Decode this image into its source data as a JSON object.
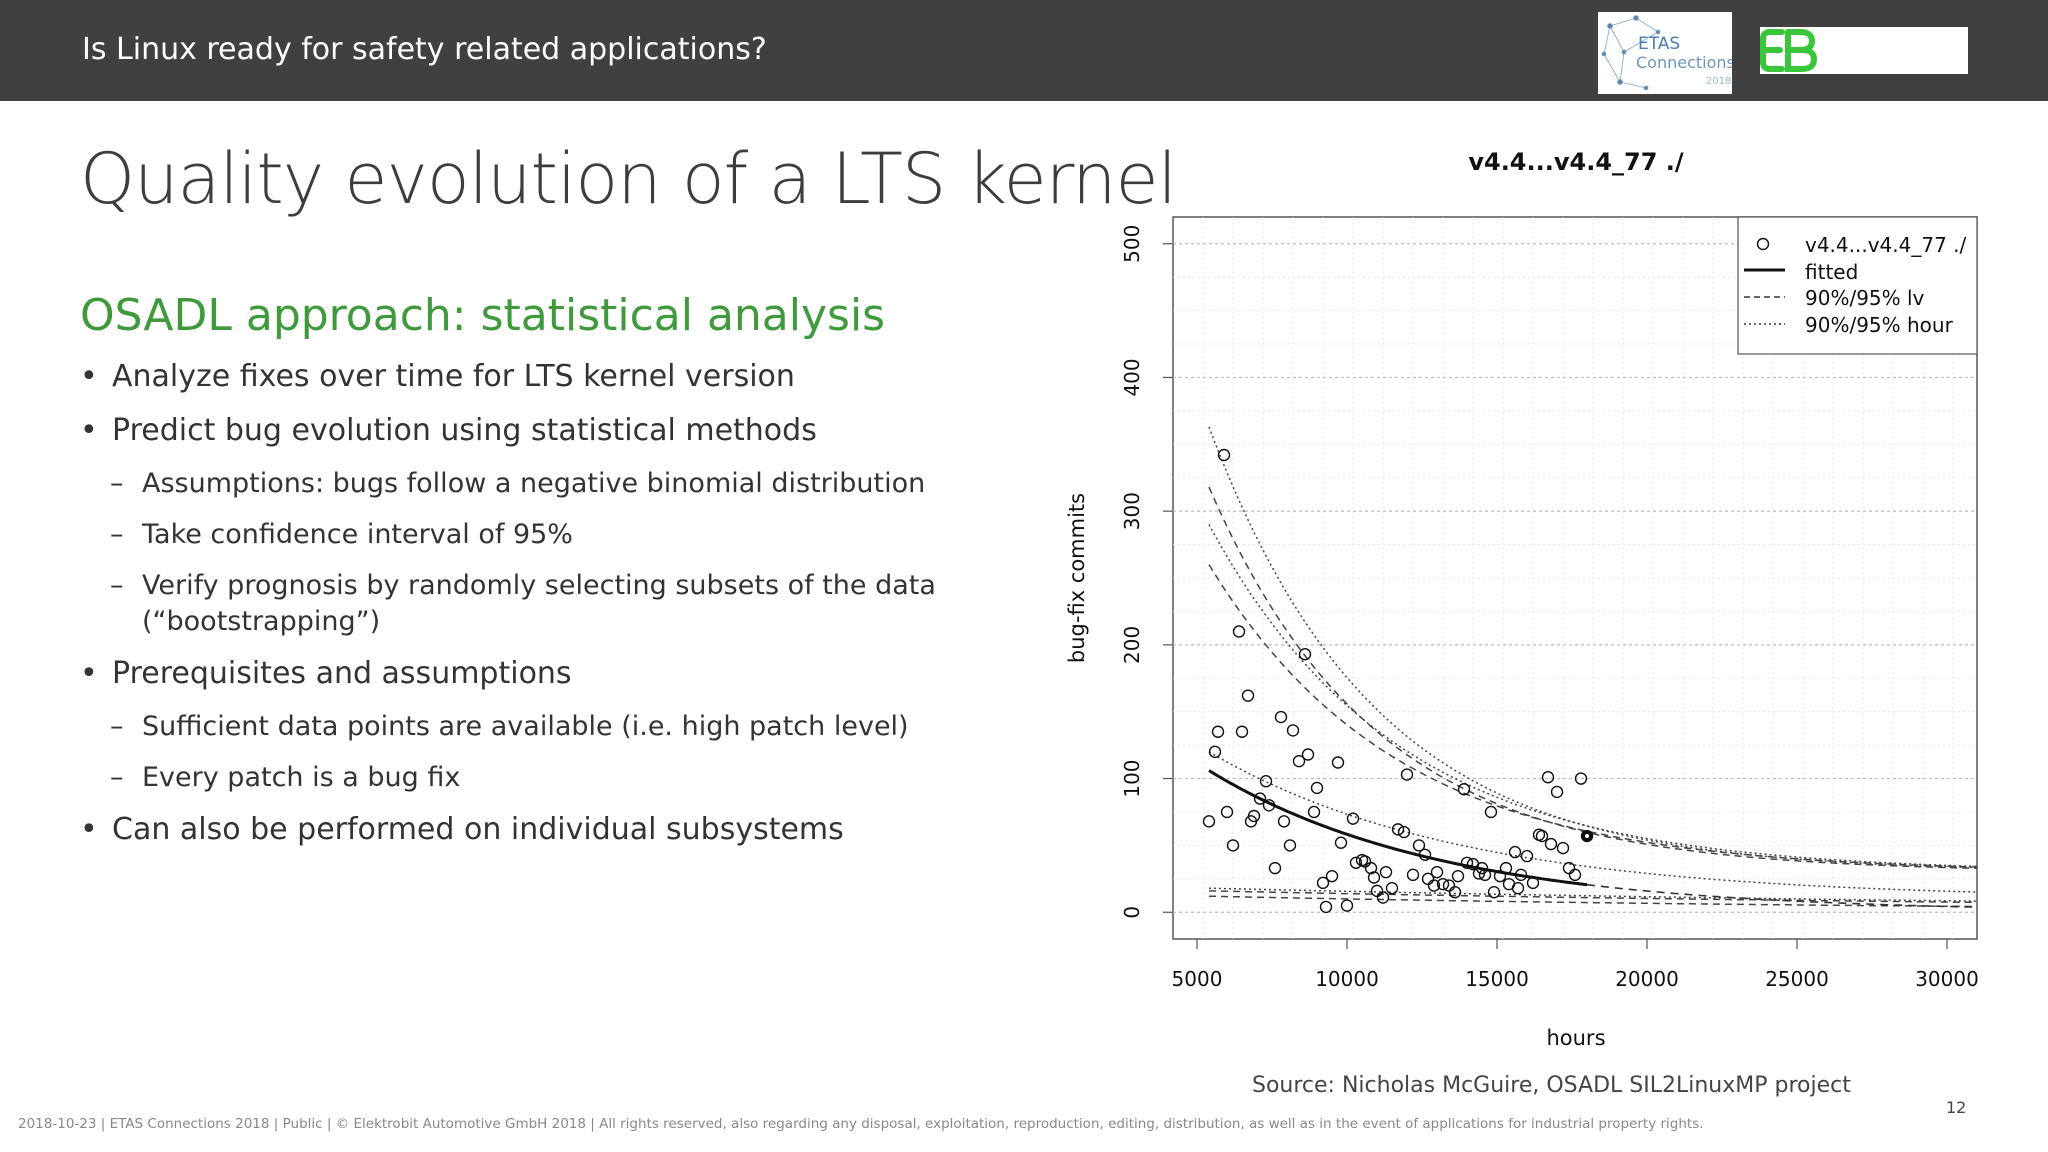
{
  "header": {
    "title": "Is Linux ready for safety related applications?",
    "logo_etas": {
      "line1": "ETAS",
      "line2": "Connections",
      "line3": "2018"
    },
    "logo_eb": "EB"
  },
  "slide": {
    "title": "Quality evolution of a LTS kernel",
    "subheading": "OSADL approach: statistical analysis",
    "bullets": [
      {
        "level": 1,
        "text": "Analyze fixes over time for LTS kernel version"
      },
      {
        "level": 1,
        "text": "Predict bug evolution using statistical methods"
      },
      {
        "level": 2,
        "text": "Assumptions: bugs follow a negative binomial distribution"
      },
      {
        "level": 2,
        "text": "Take confidence interval of 95%"
      },
      {
        "level": 2,
        "text": "Verify prognosis by randomly selecting subsets of the data (“bootstrapping”)"
      },
      {
        "level": 1,
        "text": "Prerequisites and assumptions"
      },
      {
        "level": 2,
        "text": "Sufficient data points are available (i.e. high patch level)"
      },
      {
        "level": 2,
        "text": "Every patch is a bug fix"
      },
      {
        "level": 1,
        "text": "Can also be performed on individual subsystems"
      }
    ],
    "source": "Source: Nicholas McGuire, OSADL SIL2LinuxMP project",
    "page_number": "12",
    "footer": "2018-10-23 | ETAS Connections 2018 | Public | © Elektrobit Automotive GmbH 2018 | All rights reserved, also regarding any disposal,  exploitation, reproduction, editing, distribution, as well as in the event of applications for industrial property rights."
  },
  "chart_data": {
    "type": "scatter",
    "title": "v4.4...v4.4_77 ./",
    "xlabel": "hours",
    "ylabel": "bug-fix commits",
    "xlim": [
      4200,
      31000
    ],
    "ylim": [
      -20,
      520
    ],
    "xticks": [
      "5000",
      "10000",
      "15000",
      "20000",
      "25000",
      "30000"
    ],
    "yticks": [
      "0",
      "100",
      "200",
      "300",
      "400",
      "500"
    ],
    "grid": true,
    "legend_position": "top-right",
    "legend": [
      "v4.4...v4.4_77 ./",
      "fitted",
      "90%/95% lv",
      "90%/95% hour"
    ],
    "points": [
      [
        5400,
        68
      ],
      [
        5600,
        120
      ],
      [
        5700,
        135
      ],
      [
        5900,
        342
      ],
      [
        6000,
        75
      ],
      [
        6200,
        50
      ],
      [
        6400,
        210
      ],
      [
        6500,
        135
      ],
      [
        6700,
        162
      ],
      [
        6800,
        68
      ],
      [
        6900,
        72
      ],
      [
        7100,
        85
      ],
      [
        7300,
        98
      ],
      [
        7400,
        80
      ],
      [
        7600,
        33
      ],
      [
        7800,
        146
      ],
      [
        7900,
        68
      ],
      [
        8100,
        50
      ],
      [
        8200,
        136
      ],
      [
        8400,
        113
      ],
      [
        8600,
        193
      ],
      [
        8700,
        118
      ],
      [
        8900,
        75
      ],
      [
        9000,
        93
      ],
      [
        9200,
        22
      ],
      [
        9300,
        4
      ],
      [
        9500,
        27
      ],
      [
        9700,
        112
      ],
      [
        9800,
        52
      ],
      [
        10000,
        5
      ],
      [
        10200,
        70
      ],
      [
        10300,
        37
      ],
      [
        10500,
        39
      ],
      [
        10600,
        38
      ],
      [
        10800,
        33
      ],
      [
        10900,
        26
      ],
      [
        11000,
        16
      ],
      [
        11200,
        11
      ],
      [
        11300,
        30
      ],
      [
        11500,
        18
      ],
      [
        11700,
        62
      ],
      [
        11900,
        60
      ],
      [
        12000,
        103
      ],
      [
        12200,
        28
      ],
      [
        12400,
        50
      ],
      [
        12600,
        43
      ],
      [
        12700,
        25
      ],
      [
        12900,
        20
      ],
      [
        13000,
        30
      ],
      [
        13200,
        21
      ],
      [
        13400,
        20
      ],
      [
        13600,
        15
      ],
      [
        13700,
        27
      ],
      [
        13900,
        92
      ],
      [
        14000,
        37
      ],
      [
        14200,
        36
      ],
      [
        14400,
        29
      ],
      [
        14500,
        33
      ],
      [
        14600,
        28
      ],
      [
        14800,
        75
      ],
      [
        14900,
        15
      ],
      [
        15100,
        27
      ],
      [
        15300,
        33
      ],
      [
        15400,
        21
      ],
      [
        15600,
        45
      ],
      [
        15700,
        18
      ],
      [
        15800,
        28
      ],
      [
        16000,
        42
      ],
      [
        16200,
        22
      ],
      [
        16400,
        58
      ],
      [
        16500,
        57
      ],
      [
        16700,
        101
      ],
      [
        16800,
        51
      ],
      [
        17000,
        90
      ],
      [
        17200,
        48
      ],
      [
        17400,
        33
      ],
      [
        17600,
        28
      ],
      [
        17800,
        100
      ]
    ],
    "highlight_point": [
      18000,
      57
    ],
    "fitted": {
      "a": 106,
      "b": 0.00013,
      "x0": 5400,
      "x_from": 5400,
      "x_to": 18000
    },
    "fitted_extension": {
      "x_from": 18000,
      "x_to": 31000
    },
    "bands": [
      {
        "name": "90%/95% lv",
        "style": "dashed",
        "a": 260,
        "b": 0.00016,
        "x0": 5400,
        "offset": 30
      },
      {
        "name": "90%/95% lv",
        "style": "dashed",
        "a": 318,
        "b": 0.00018,
        "x0": 5400,
        "offset": 30
      },
      {
        "name": "90%/95% lv",
        "style": "dashed",
        "a": 16,
        "b": 3e-05,
        "x0": 5400,
        "offset": 0
      },
      {
        "name": "90%/95% lv",
        "style": "dashed",
        "a": 12,
        "b": 4e-05,
        "x0": 5400,
        "offset": 0
      },
      {
        "name": "90%/95% hour",
        "style": "dotted",
        "a": 363,
        "b": 0.00018,
        "x0": 5400,
        "offset": 30
      },
      {
        "name": "90%/95% hour",
        "style": "dotted",
        "a": 290,
        "b": 0.00016,
        "x0": 5400,
        "offset": 30
      },
      {
        "name": "90%/95% hour",
        "style": "dotted",
        "a": 120,
        "b": 0.00012,
        "x0": 5400,
        "offset": 10
      },
      {
        "name": "90%/95% hour",
        "style": "dotted",
        "a": 18,
        "b": 3e-05,
        "x0": 5400,
        "offset": 0
      }
    ]
  }
}
